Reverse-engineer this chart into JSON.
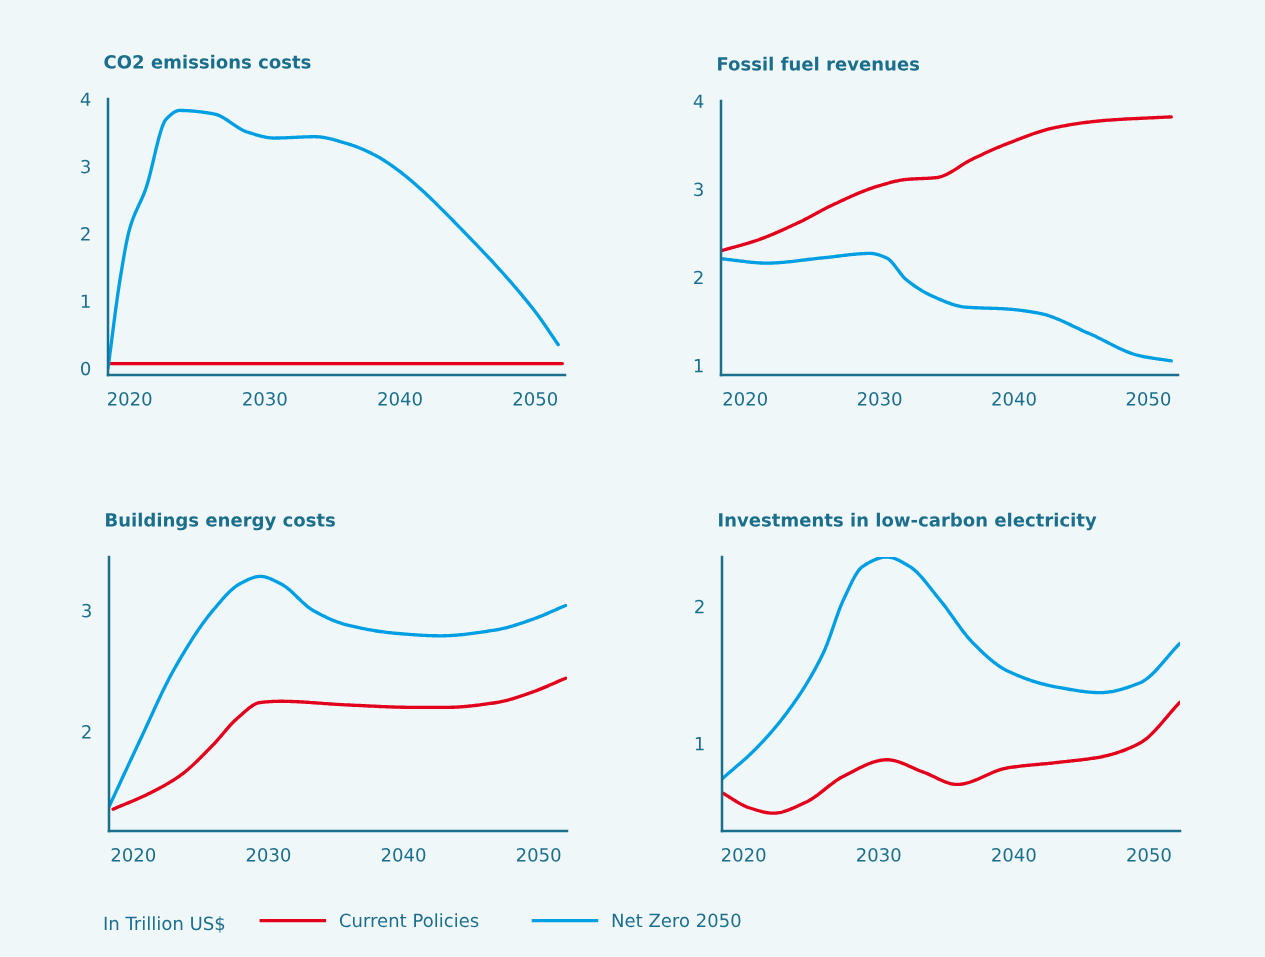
{
  "chart_data": [
    {
      "type": "line",
      "title": "CO2 emissions costs",
      "xlim": [
        2018.4,
        2052.2
      ],
      "xticks": [
        2020,
        2030,
        2040,
        2050
      ],
      "ylim": [
        -0.1,
        4
      ],
      "yticks": [
        0,
        1,
        2,
        3,
        4
      ],
      "annotations": [
        "In Trillion US$"
      ],
      "legend": "bottom",
      "series": [
        {
          "name": "Current Policies",
          "color": "#e2001a",
          "x": [
            2018.4,
            2052
          ],
          "values": [
            0.07,
            0.07
          ]
        },
        {
          "name": "Net Zero 2050",
          "color": "#009fe3",
          "x": [
            2018.4,
            2019.3,
            2020,
            2021.2,
            2022.7,
            2023.7,
            2026.2,
            2028.7,
            2030.7,
            2033.7,
            2036.2,
            2038.2,
            2040,
            2045,
            2050,
            2051.7
          ],
          "values": [
            0,
            1.33,
            2.07,
            2.67,
            3.7,
            3.83,
            3.78,
            3.51,
            3.42,
            3.44,
            3.33,
            3.16,
            2.92,
            1.97,
            0.84,
            0.35
          ]
        }
      ]
    },
    {
      "type": "line",
      "title": "Fossil fuel revenues",
      "xlim": [
        2018.2,
        2052.2
      ],
      "xticks": [
        2020,
        2030,
        2040,
        2050
      ],
      "ylim": [
        0.89,
        4
      ],
      "yticks": [
        1,
        2,
        3,
        4
      ],
      "series": [
        {
          "color": "#e2001a",
          "x": [
            2018.2,
            2020.9,
            2024.1,
            2026.5,
            2029.8,
            2032.0,
            2034.2,
            2036.9,
            2039.4,
            2043.1,
            2046.8,
            2051.7
          ],
          "values": [
            2.3,
            2.42,
            2.63,
            2.82,
            3.03,
            3.11,
            3.13,
            3.34,
            3.51,
            3.7,
            3.78,
            3.82
          ]
        },
        {
          "color": "#009fe3",
          "x": [
            2018.2,
            2021.6,
            2025.8,
            2029.3,
            2030.5,
            2032,
            2034,
            2036.4,
            2039.4,
            2041.9,
            2045.6,
            2049.3,
            2051.7
          ],
          "values": [
            2.21,
            2.16,
            2.22,
            2.27,
            2.22,
            1.97,
            1.78,
            1.66,
            1.64,
            1.59,
            1.36,
            1.11,
            1.05
          ]
        }
      ]
    },
    {
      "type": "line",
      "title": "Buildings energy costs",
      "xlim": [
        2018.2,
        2052.1
      ],
      "xticks": [
        2020,
        2030,
        2040,
        2050
      ],
      "ylim": [
        1.18,
        3.44
      ],
      "yticks": [
        2,
        3
      ],
      "series": [
        {
          "color": "#e2001a",
          "x": [
            2018.5,
            2021,
            2023.5,
            2025.9,
            2027.7,
            2029.4,
            2030.9,
            2035.8,
            2040.7,
            2043.2,
            2046.9,
            2049.4,
            2052
          ],
          "values": [
            1.36,
            1.48,
            1.64,
            1.89,
            2.11,
            2.24,
            2.25,
            2.22,
            2.2,
            2.2,
            2.24,
            2.32,
            2.44
          ]
        },
        {
          "color": "#009fe3",
          "x": [
            2018.2,
            2020.5,
            2023,
            2025.9,
            2027.9,
            2029.4,
            2030.9,
            2033.3,
            2035.8,
            2039.5,
            2042.7,
            2046.9,
            2049.4,
            2052
          ],
          "values": [
            1.38,
            1.93,
            2.51,
            3.0,
            3.22,
            3.28,
            3.22,
            3.0,
            2.88,
            2.81,
            2.79,
            2.84,
            2.92,
            3.04
          ]
        }
      ]
    },
    {
      "type": "line",
      "title": "Investments in low-carbon electricity",
      "xlim": [
        2018.4,
        2052.3
      ],
      "xticks": [
        2020,
        2030,
        2040,
        2050
      ],
      "ylim": [
        0.36,
        2.36
      ],
      "yticks": [
        1,
        2
      ],
      "series": [
        {
          "color": "#e2001a",
          "x": [
            2018.4,
            2020.4,
            2022.2,
            2024.6,
            2027.4,
            2030.6,
            2033.3,
            2035.8,
            2039.5,
            2043.2,
            2046.4,
            2049.3,
            2052.3
          ],
          "values": [
            0.64,
            0.53,
            0.49,
            0.57,
            0.76,
            0.88,
            0.79,
            0.7,
            0.82,
            0.86,
            0.9,
            1.0,
            1.3
          ]
        },
        {
          "color": "#009fe3",
          "x": [
            2018.4,
            2020.9,
            2023.4,
            2025.9,
            2027.4,
            2028.8,
            2030.6,
            2032.3,
            2034.5,
            2037,
            2039.5,
            2043.2,
            2046.4,
            2049.3,
            2052.3
          ],
          "values": [
            0.74,
            0.96,
            1.25,
            1.66,
            2.05,
            2.29,
            2.36,
            2.29,
            2.05,
            1.73,
            1.53,
            1.41,
            1.37,
            1.44,
            1.73
          ]
        }
      ]
    }
  ]
}
